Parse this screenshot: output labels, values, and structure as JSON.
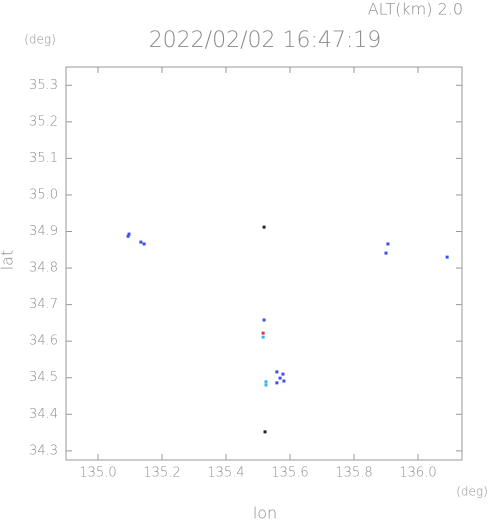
{
  "chart_data": {
    "type": "scatter",
    "header": "ALT(km) 2.0",
    "title": "2022/02/02 16:47:19",
    "y_unit": "(deg)",
    "x_unit": "(deg)",
    "xlabel": "lon",
    "ylabel": "lat",
    "xlim": [
      134.9,
      136.1375
    ],
    "ylim": [
      34.275,
      35.35
    ],
    "xticks": [
      {
        "value": 135,
        "label": "135.0"
      },
      135.2,
      135.4,
      135.6,
      135.8,
      {
        "value": 136,
        "label": "136.0"
      }
    ],
    "yticks": [
      34.3,
      34.4,
      34.5,
      34.6,
      34.7,
      34.8,
      34.9,
      {
        "value": 35,
        "label": "35.0"
      },
      35.1,
      35.2,
      35.3
    ],
    "series": [
      {
        "color": "#3a4ff0",
        "x": [
          135.094,
          135.097,
          135.134,
          135.144,
          135.906,
          135.9,
          136.091,
          135.519,
          135.559,
          135.569,
          135.578,
          135.559,
          135.581
        ],
        "values": [
          34.887,
          34.893,
          34.871,
          34.866,
          34.866,
          34.841,
          34.83,
          34.658,
          34.516,
          34.499,
          34.51,
          34.486,
          34.491
        ]
      },
      {
        "color": "#38b8f0",
        "x": [
          135.516,
          135.525,
          135.525
        ],
        "values": [
          34.611,
          34.489,
          34.48
        ]
      },
      {
        "color": "#d83848",
        "x": [
          135.516
        ],
        "values": [
          34.622
        ]
      },
      {
        "color": "#222222",
        "x": [
          135.519,
          135.522
        ],
        "values": [
          34.912,
          34.352
        ]
      }
    ]
  }
}
